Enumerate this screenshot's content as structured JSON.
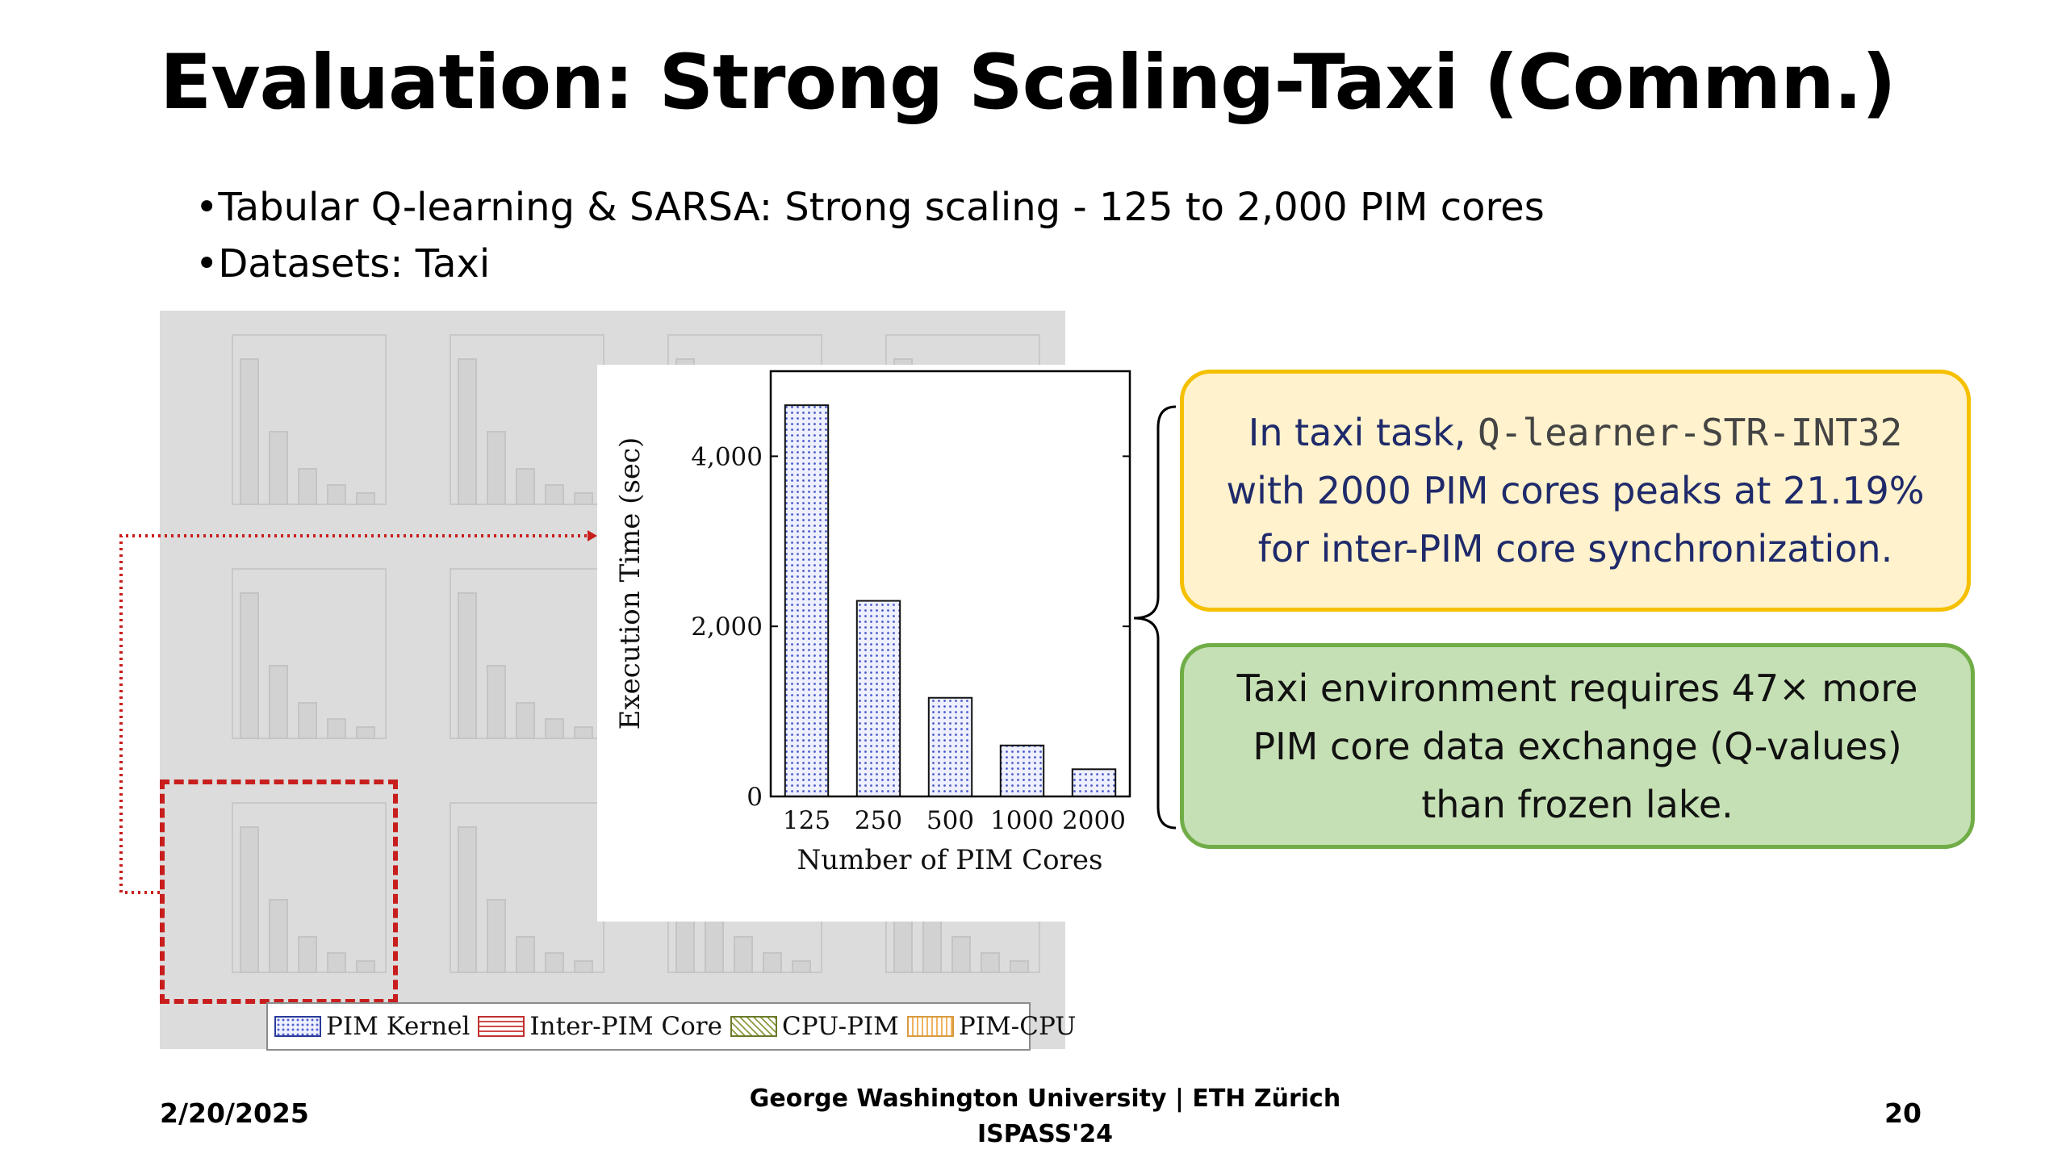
{
  "slide": {
    "title": "Evaluation: Strong Scaling-Taxi (Commn.)",
    "bullets": [
      "•Tabular Q-learning & SARSA: Strong scaling - 125 to 2,000 PIM cores",
      "•Datasets: Taxi"
    ]
  },
  "legend": {
    "items": [
      "PIM Kernel",
      "Inter-PIM Core",
      "CPU-PIM",
      "PIM-CPU"
    ]
  },
  "callouts": {
    "yellow": {
      "prefix": "In taxi task, ",
      "code": "Q-learner-STR-INT32",
      "suffix": " with 2000 PIM cores peaks at 21.19% for inter-PIM core synchronization."
    },
    "green": "Taxi environment requires 47× more PIM core data exchange (Q-values) than frozen lake."
  },
  "footer": {
    "date": "2/20/2025",
    "org": "George Washington University | ETH Zürich",
    "venue": "ISPASS'24",
    "page": "20"
  },
  "colors": {
    "pim_kernel": "#4a5ac8",
    "inter_pim": "#d24a4a",
    "cpu_pim": "#8e9a40",
    "pim_cpu": "#f0b460",
    "callout_yellow_border": "#f5c000",
    "callout_green_border": "#70ad47",
    "highlight_red": "#c81e1e"
  },
  "chart_data": {
    "type": "bar",
    "categories": [
      "125",
      "250",
      "500",
      "1000",
      "2000"
    ],
    "series": [
      {
        "name": "PIM Kernel",
        "values": [
          4600,
          2300,
          1160,
          600,
          320
        ]
      }
    ],
    "title": "",
    "xlabel": "Number of PIM Cores",
    "ylabel": "Execution Time (sec)",
    "ylim": [
      0,
      5000
    ],
    "yticks": [
      0,
      2000,
      4000
    ],
    "ytick_labels": [
      "0",
      "2,000",
      "4,000"
    ],
    "grid": false
  }
}
